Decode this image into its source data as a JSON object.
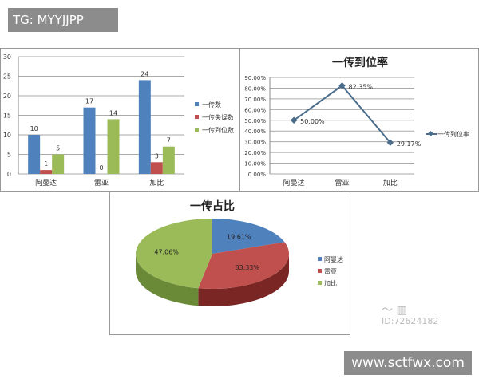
{
  "overlay": {
    "tg_label": "TG: MYYJJPP",
    "site_label": "www.sctfwx.com",
    "watermark_id": "ID:72624182"
  },
  "colors": {
    "blue": "#4f81bd",
    "red": "#c0504d",
    "green": "#9bbb59",
    "line": "#4a6d8c"
  },
  "chart_data": [
    {
      "type": "bar",
      "title": "",
      "categories": [
        "阿曼达",
        "雷亚",
        "加比"
      ],
      "series": [
        {
          "name": "一传数",
          "values": [
            10,
            17,
            24
          ]
        },
        {
          "name": "一传失误数",
          "values": [
            1,
            0,
            3
          ]
        },
        {
          "name": "一传到位数",
          "values": [
            5,
            14,
            7
          ]
        }
      ],
      "yticks": [
        "0",
        "5",
        "10",
        "15",
        "20",
        "25",
        "30"
      ],
      "ylim": [
        0,
        30
      ],
      "grid": true,
      "legend": "right"
    },
    {
      "type": "line",
      "title": "一传到位率",
      "categories": [
        "阿曼达",
        "雷亚",
        "加比"
      ],
      "series": [
        {
          "name": "一传到位率",
          "values": [
            50.0,
            82.35,
            29.17
          ],
          "labels": [
            "50.00%",
            "82.35%",
            "29.17%"
          ]
        }
      ],
      "yticks": [
        "0.00%",
        "10.00%",
        "20.00%",
        "30.00%",
        "40.00%",
        "50.00%",
        "60.00%",
        "70.00%",
        "80.00%",
        "90.00%"
      ],
      "ylim": [
        0,
        90
      ],
      "grid": true,
      "legend": "right"
    },
    {
      "type": "pie",
      "title": "一传占比",
      "categories": [
        "阿曼达",
        "雷亚",
        "加比"
      ],
      "values": [
        19.61,
        33.33,
        47.06
      ],
      "labels": [
        "19.61%",
        "33.33%",
        "47.06%"
      ],
      "legend": "right",
      "style": "3d"
    }
  ]
}
